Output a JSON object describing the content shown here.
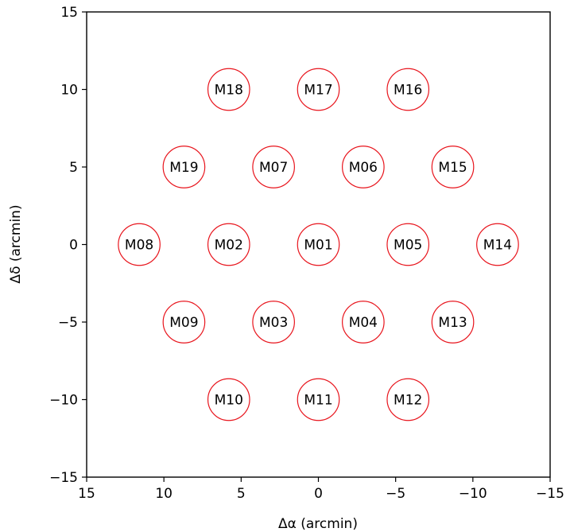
{
  "chart_data": {
    "type": "scatter",
    "title": "",
    "xlabel": "Δα (arcmin)",
    "ylabel": "Δδ (arcmin)",
    "xlim": [
      15,
      -15
    ],
    "ylim": [
      -15,
      15
    ],
    "x_inverted": true,
    "grid": false,
    "marker": "open circle",
    "marker_radius": 1.35,
    "marker_color": "#e8141c",
    "x_ticks": [
      15,
      10,
      5,
      0,
      -5,
      -10,
      -15
    ],
    "x_tick_labels": [
      "15",
      "10",
      "5",
      "0",
      "−5",
      "−10",
      "−15"
    ],
    "y_ticks": [
      15,
      10,
      5,
      0,
      -5,
      -10,
      -15
    ],
    "y_tick_labels": [
      "15",
      "10",
      "5",
      "0",
      "−5",
      "−10",
      "−15"
    ],
    "points": [
      {
        "label": "M01",
        "x": 0,
        "y": 0
      },
      {
        "label": "M02",
        "x": 5.8,
        "y": 0
      },
      {
        "label": "M03",
        "x": 2.9,
        "y": -5
      },
      {
        "label": "M04",
        "x": -2.9,
        "y": -5
      },
      {
        "label": "M05",
        "x": -5.8,
        "y": 0
      },
      {
        "label": "M06",
        "x": -2.9,
        "y": 5
      },
      {
        "label": "M07",
        "x": 2.9,
        "y": 5
      },
      {
        "label": "M08",
        "x": 11.6,
        "y": 0
      },
      {
        "label": "M09",
        "x": 8.7,
        "y": -5
      },
      {
        "label": "M10",
        "x": 5.8,
        "y": -10
      },
      {
        "label": "M11",
        "x": 0,
        "y": -10
      },
      {
        "label": "M12",
        "x": -5.8,
        "y": -10
      },
      {
        "label": "M13",
        "x": -8.7,
        "y": -5
      },
      {
        "label": "M14",
        "x": -11.6,
        "y": 0
      },
      {
        "label": "M15",
        "x": -8.7,
        "y": 5
      },
      {
        "label": "M16",
        "x": -5.8,
        "y": 10
      },
      {
        "label": "M17",
        "x": 0,
        "y": 10
      },
      {
        "label": "M18",
        "x": 5.8,
        "y": 10
      },
      {
        "label": "M19",
        "x": 8.7,
        "y": 5
      }
    ]
  }
}
